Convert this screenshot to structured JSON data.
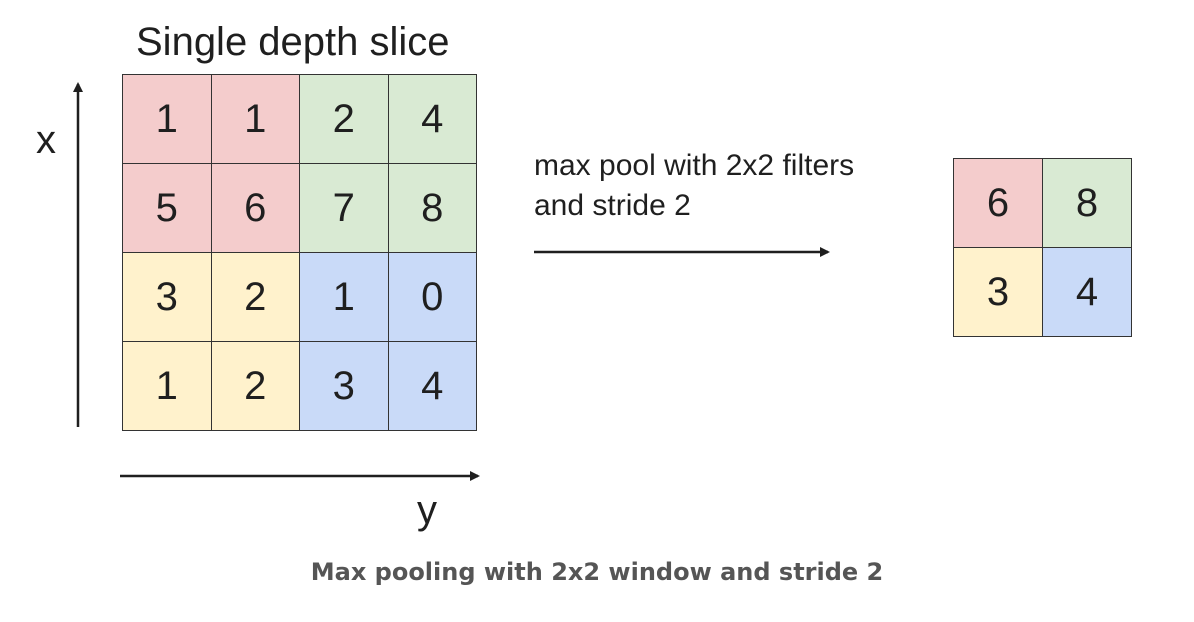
{
  "title": "Single depth slice",
  "axes": {
    "x_label": "x",
    "y_label": "y"
  },
  "input_grid": {
    "rows": [
      [
        "1",
        "1",
        "2",
        "4"
      ],
      [
        "5",
        "6",
        "7",
        "8"
      ],
      [
        "3",
        "2",
        "1",
        "0"
      ],
      [
        "1",
        "2",
        "3",
        "4"
      ]
    ]
  },
  "operation": {
    "line1": "max pool with 2x2 filters",
    "line2": "and stride 2"
  },
  "output_grid": {
    "rows": [
      [
        "6",
        "8"
      ],
      [
        "3",
        "4"
      ]
    ]
  },
  "colors": {
    "red": "#f4cccc",
    "green": "#d9ead3",
    "yellow": "#fff2cc",
    "blue": "#c9daf8"
  },
  "caption": "Max pooling with 2x2 window and stride 2"
}
